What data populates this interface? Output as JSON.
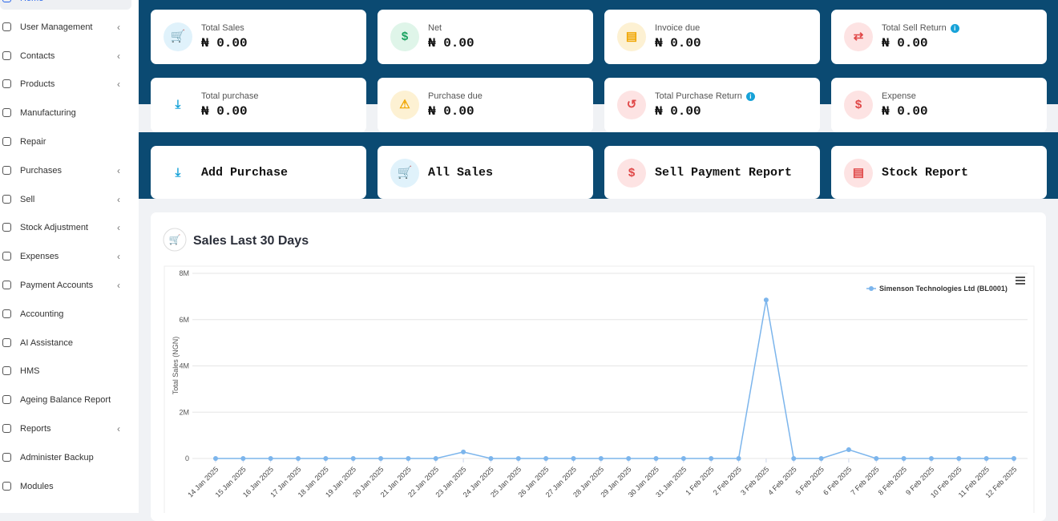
{
  "sidebar": {
    "items": [
      {
        "label": "Home",
        "expandable": false
      },
      {
        "label": "User Management",
        "expandable": true
      },
      {
        "label": "Contacts",
        "expandable": true
      },
      {
        "label": "Products",
        "expandable": true
      },
      {
        "label": "Manufacturing",
        "expandable": false
      },
      {
        "label": "Repair",
        "expandable": false
      },
      {
        "label": "Purchases",
        "expandable": true
      },
      {
        "label": "Sell",
        "expandable": true
      },
      {
        "label": "Stock Adjustment",
        "expandable": true
      },
      {
        "label": "Expenses",
        "expandable": true
      },
      {
        "label": "Payment Accounts",
        "expandable": true
      },
      {
        "label": "Accounting",
        "expandable": false
      },
      {
        "label": "AI Assistance",
        "expandable": false
      },
      {
        "label": "HMS",
        "expandable": false
      },
      {
        "label": "Ageing Balance Report",
        "expandable": false
      },
      {
        "label": "Reports",
        "expandable": true
      },
      {
        "label": "Administer Backup",
        "expandable": false
      },
      {
        "label": "Modules",
        "expandable": false
      }
    ]
  },
  "stats": [
    {
      "label": "Total Sales",
      "value": "₦ 0.00",
      "info": false
    },
    {
      "label": "Net",
      "value": "₦ 0.00",
      "info": false
    },
    {
      "label": "Invoice due",
      "value": "₦ 0.00",
      "info": false
    },
    {
      "label": "Total Sell Return",
      "value": "₦ 0.00",
      "info": true
    },
    {
      "label": "Total purchase",
      "value": "₦ 0.00",
      "info": false
    },
    {
      "label": "Purchase due",
      "value": "₦ 0.00",
      "info": false
    },
    {
      "label": "Total Purchase Return",
      "value": "₦ 0.00",
      "info": true
    },
    {
      "label": "Expense",
      "value": "₦ 0.00",
      "info": false
    }
  ],
  "quick_links": [
    "Add Purchase",
    "All Sales",
    "Sell Payment Report",
    "Stock Report"
  ],
  "chart_data": {
    "type": "line",
    "title": "Sales Last 30 Days",
    "y_label": "Total Sales (NGN)",
    "categories": [
      "14 Jan 2025",
      "15 Jan 2025",
      "16 Jan 2025",
      "17 Jan 2025",
      "18 Jan 2025",
      "19 Jan 2025",
      "20 Jan 2025",
      "21 Jan 2025",
      "22 Jan 2025",
      "23 Jan 2025",
      "24 Jan 2025",
      "25 Jan 2025",
      "26 Jan 2025",
      "27 Jan 2025",
      "28 Jan 2025",
      "29 Jan 2025",
      "30 Jan 2025",
      "31 Jan 2025",
      "1 Feb 2025",
      "2 Feb 2025",
      "3 Feb 2025",
      "4 Feb 2025",
      "5 Feb 2025",
      "6 Feb 2025",
      "7 Feb 2025",
      "8 Feb 2025",
      "9 Feb 2025",
      "10 Feb 2025",
      "11 Feb 2025",
      "12 Feb 2025"
    ],
    "series": [
      {
        "name": "Simenson Technologies Ltd (BL0001)",
        "color": "#7cb5ec",
        "values": [
          0,
          0,
          0,
          0,
          0,
          0,
          0,
          0,
          0,
          280000,
          0,
          0,
          0,
          0,
          0,
          0,
          0,
          0,
          0,
          0,
          6850000,
          0,
          0,
          380000,
          0,
          0,
          0,
          0,
          0,
          0
        ]
      }
    ],
    "ylim": [
      0,
      8000000
    ],
    "yticks": [
      0,
      {
        "value": 2000000,
        "label": "2M"
      },
      {
        "value": 4000000,
        "label": "4M"
      },
      {
        "value": 6000000,
        "label": "6M"
      },
      {
        "value": 8000000,
        "label": "8M"
      }
    ],
    "grid": true
  }
}
